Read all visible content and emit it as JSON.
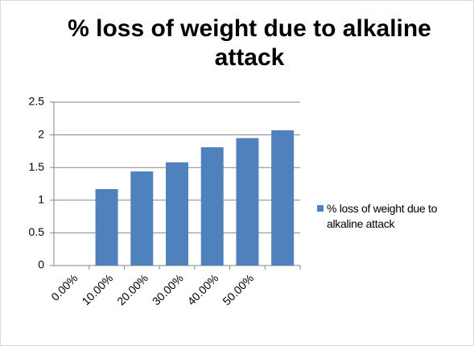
{
  "chart_data": {
    "type": "bar",
    "title": "% loss of weight due to alkaline attack",
    "categories": [
      "0.00%",
      "10.00%",
      "20.00%",
      "30.00%",
      "40.00%",
      "50.00%",
      null
    ],
    "series": [
      {
        "name": "% loss of weight due to alkaline attack",
        "color": "#4f81bd",
        "values": [
          0,
          1.17,
          1.44,
          1.58,
          1.81,
          1.95,
          2.07
        ]
      }
    ],
    "ylim": [
      0,
      2.5
    ],
    "yticks": [
      0,
      0.5,
      1,
      1.5,
      2,
      2.5
    ],
    "grid": true,
    "legend": "right"
  }
}
